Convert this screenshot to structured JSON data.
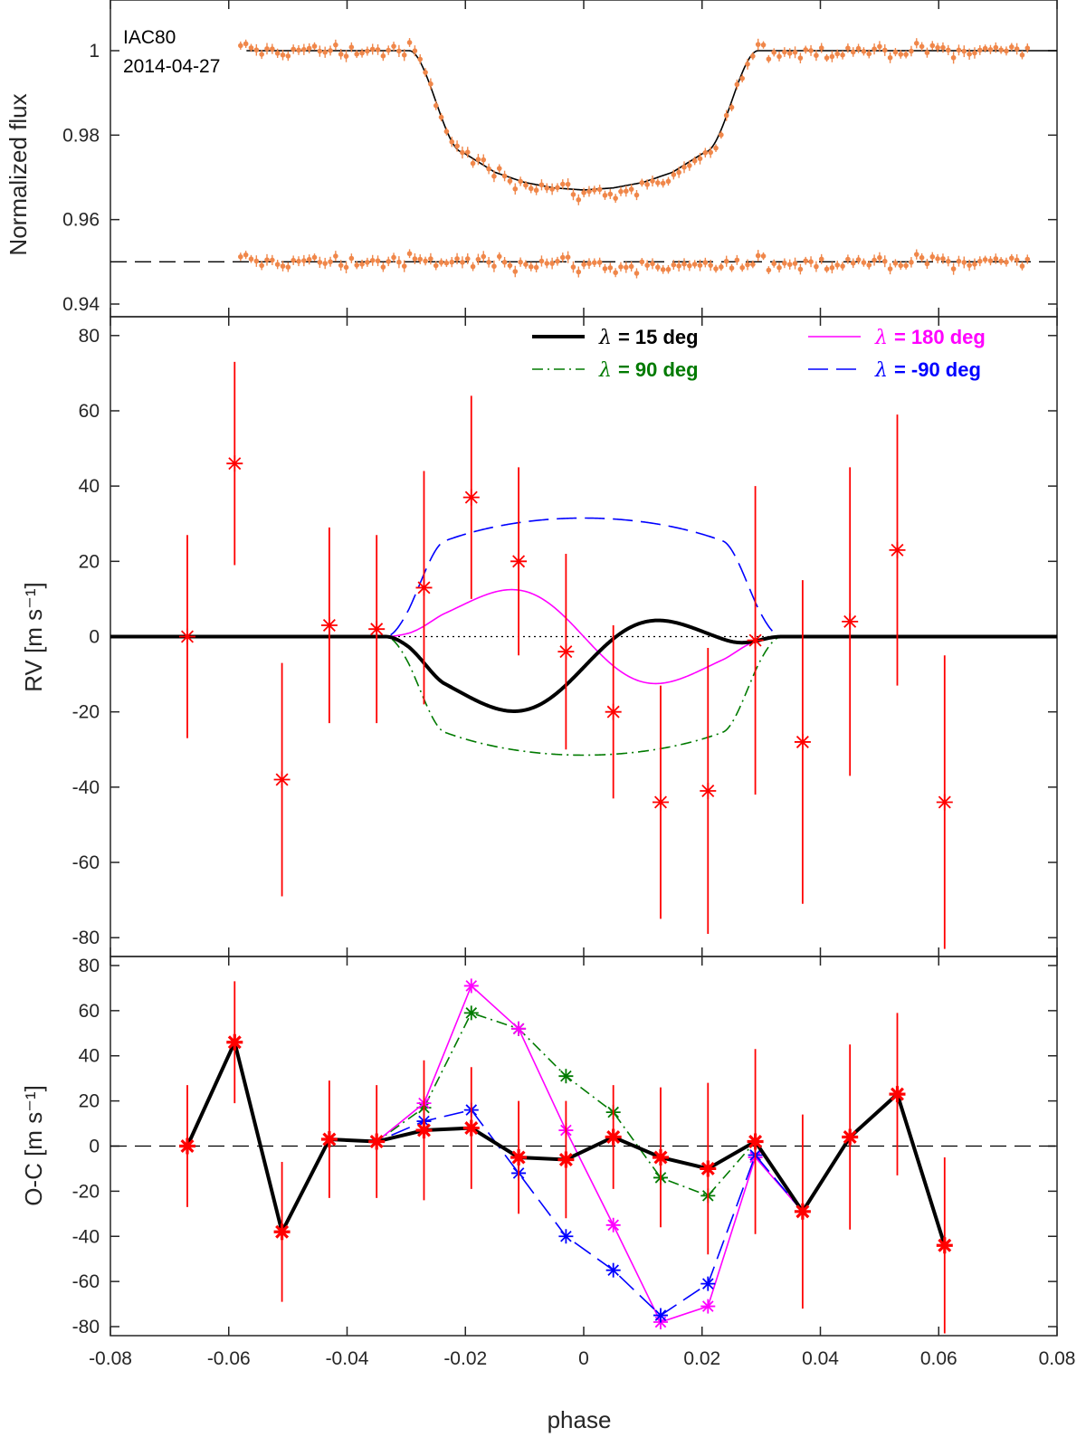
{
  "colors": {
    "flux_points": "#f0874a",
    "rv_points": "#ff0000",
    "model_15": "#000000",
    "model_90": "#007a00",
    "model_180": "#ff00ff",
    "model_m90": "#0000ff",
    "axes": "#262626"
  },
  "chart_data": [
    {
      "type": "scatter",
      "panel": "top",
      "ylabel": "Normalized flux",
      "xlim": [
        -0.08,
        0.08
      ],
      "ylim": [
        0.937,
        1.012
      ],
      "yticks": [
        0.94,
        0.96,
        0.98,
        1
      ],
      "ytick_labels": [
        "0.94",
        "0.96",
        "0.98",
        "1"
      ],
      "annotations": [
        "IAC80",
        "2014-04-27"
      ],
      "residual_offset": 0.95,
      "transit_model": {
        "t1": -0.0295,
        "t2": -0.0205,
        "t3": 0.0205,
        "t4": 0.0295,
        "x_sample": [
          -0.0205,
          -0.015,
          -0.01,
          -0.005,
          0,
          0.005,
          0.01,
          0.015,
          0.0205
        ],
        "y_sample": [
          0.976,
          0.9712,
          0.9688,
          0.9675,
          0.967,
          0.9675,
          0.9688,
          0.9712,
          0.976
        ]
      },
      "observations": {
        "x_start": -0.058,
        "x_end": 0.075,
        "n_points": 150,
        "typical_error": 0.0011
      }
    },
    {
      "type": "line",
      "panel": "middle",
      "ylabel": "RV [m s⁻¹]",
      "xlim": [
        -0.08,
        0.08
      ],
      "ylim": [
        -85,
        85
      ],
      "yticks": [
        -80,
        -60,
        -40,
        -20,
        0,
        20,
        40,
        60,
        80
      ],
      "ytick_labels": [
        "-80",
        "-60",
        "-40",
        "-20",
        "0",
        "20",
        "40",
        "60",
        "80"
      ],
      "contact_phases": [
        -0.0295,
        0.0295
      ],
      "model_amplitude": 35,
      "series": [
        {
          "name": "λ = 15 deg",
          "label": "= 15 deg",
          "lambda_deg": 15,
          "color": "#000000",
          "style": "solid-thick"
        },
        {
          "name": "λ = 90 deg",
          "label": "= 90 deg",
          "lambda_deg": 90,
          "color": "#007a00",
          "style": "dashdot"
        },
        {
          "name": "λ = 180 deg",
          "label": "= 180 deg",
          "lambda_deg": 180,
          "color": "#ff00ff",
          "style": "solid"
        },
        {
          "name": "λ = -90 deg",
          "label": "= -90 deg",
          "lambda_deg": -90,
          "color": "#0000ff",
          "style": "dashed"
        }
      ],
      "lambda_symbol": "λ",
      "observations": {
        "x": [
          -0.067,
          -0.059,
          -0.051,
          -0.043,
          -0.035,
          -0.027,
          -0.019,
          -0.011,
          -0.003,
          0.005,
          0.013,
          0.021,
          0.029,
          0.037,
          0.045,
          0.053,
          0.061
        ],
        "y": [
          0,
          46,
          -38,
          3,
          2,
          13,
          37,
          20,
          -4,
          -20,
          -44,
          -41,
          -1,
          -28,
          4,
          23,
          -44
        ],
        "err": [
          27,
          27,
          31,
          26,
          25,
          31,
          27,
          25,
          26,
          23,
          31,
          38,
          41,
          43,
          41,
          36,
          39
        ]
      }
    },
    {
      "type": "line",
      "panel": "bottom",
      "xlabel": "phase",
      "ylabel": "O-C [m s⁻¹]",
      "xlim": [
        -0.08,
        0.08
      ],
      "ylim": [
        -84,
        84
      ],
      "xticks": [
        -0.08,
        -0.06,
        -0.04,
        -0.02,
        0,
        0.02,
        0.04,
        0.06,
        0.08
      ],
      "xtick_labels": [
        "-0.08",
        "-0.06",
        "-0.04",
        "-0.02",
        "0",
        "0.02",
        "0.04",
        "0.06",
        "0.08"
      ],
      "yticks": [
        -80,
        -60,
        -40,
        -20,
        0,
        20,
        40,
        60,
        80
      ],
      "ytick_labels": [
        "-80",
        "-60",
        "-40",
        "-20",
        "0",
        "20",
        "40",
        "60",
        "80"
      ],
      "x": [
        -0.067,
        -0.059,
        -0.051,
        -0.043,
        -0.035,
        -0.027,
        -0.019,
        -0.011,
        -0.003,
        0.005,
        0.013,
        0.021,
        0.029,
        0.037,
        0.045,
        0.053,
        0.061
      ],
      "err": [
        27,
        27,
        31,
        26,
        25,
        31,
        27,
        25,
        26,
        23,
        31,
        38,
        41,
        43,
        41,
        36,
        39
      ],
      "series": [
        {
          "name": "λ = 90 deg",
          "color": "#007a00",
          "style": "dashdot",
          "values": [
            0,
            46,
            -38,
            3,
            2,
            17,
            59,
            52,
            31,
            15,
            -14,
            -22,
            2,
            -29,
            4,
            23,
            -44
          ]
        },
        {
          "name": "λ = 180 deg",
          "color": "#ff00ff",
          "style": "solid",
          "values": [
            0,
            46,
            -38,
            3,
            2,
            19,
            71,
            52,
            7,
            -35,
            -78,
            -71,
            -5,
            -29,
            4,
            23,
            -44
          ]
        },
        {
          "name": "λ = -90 deg",
          "color": "#0000ff",
          "style": "dashed",
          "values": [
            0,
            46,
            -38,
            3,
            2,
            11,
            16,
            -12,
            -40,
            -55,
            -75,
            -61,
            -4,
            -29,
            4,
            23,
            -44
          ]
        },
        {
          "name": "λ = 15 deg",
          "color": "#000000",
          "style": "solid-thick",
          "values": [
            0,
            46,
            -38,
            3,
            2,
            7,
            8,
            -5,
            -6,
            4,
            -5,
            -10,
            2,
            -29,
            4,
            23,
            -44
          ]
        }
      ]
    }
  ]
}
